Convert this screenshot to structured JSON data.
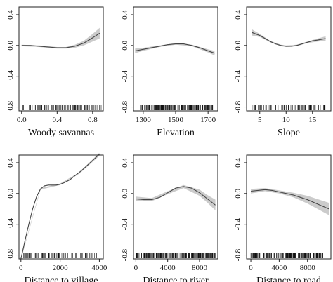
{
  "chart_data": [
    {
      "type": "line",
      "xlabel": "Woody savannas",
      "xlim": [
        -0.03,
        0.92
      ],
      "xticks": [
        0.0,
        0.4,
        0.8
      ],
      "xtick_labels": [
        "0.0",
        "0.4",
        "0.8"
      ],
      "ylim": [
        -0.85,
        0.5
      ],
      "yticks": [
        -0.8,
        -0.4,
        0.0,
        0.4
      ],
      "ytick_labels": [
        "-0.8",
        "-0.4",
        "0.0",
        "0.4"
      ],
      "series": [
        {
          "x": [
            0.0,
            0.1,
            0.2,
            0.3,
            0.4,
            0.5,
            0.6,
            0.7,
            0.8,
            0.88
          ],
          "y": [
            0.0,
            0.0,
            -0.01,
            -0.02,
            -0.03,
            -0.03,
            -0.01,
            0.03,
            0.1,
            0.16
          ]
        }
      ],
      "band": {
        "x": [
          0.0,
          0.2,
          0.4,
          0.5,
          0.6,
          0.7,
          0.8,
          0.88
        ],
        "lower": [
          -0.01,
          -0.02,
          -0.04,
          -0.04,
          -0.03,
          0.0,
          0.05,
          0.09
        ],
        "upper": [
          0.01,
          0.0,
          -0.02,
          -0.02,
          0.01,
          0.06,
          0.15,
          0.23
        ]
      },
      "rug_range": [
        0.0,
        0.9
      ],
      "rug_density": "dense"
    },
    {
      "type": "line",
      "xlabel": "Elevation",
      "xlim": [
        1240,
        1760
      ],
      "xticks": [
        1300,
        1500,
        1700
      ],
      "xtick_labels": [
        "1300",
        "1500",
        "1700"
      ],
      "ylim": [
        -0.85,
        0.5
      ],
      "yticks": [
        -0.8,
        -0.4,
        0.0,
        0.4
      ],
      "ytick_labels": [
        "-0.8",
        "-0.4",
        "0.0",
        "0.4"
      ],
      "series": [
        {
          "x": [
            1250,
            1300,
            1350,
            1400,
            1450,
            1500,
            1550,
            1600,
            1650,
            1700,
            1740
          ],
          "y": [
            -0.07,
            -0.05,
            -0.03,
            -0.01,
            0.01,
            0.02,
            0.02,
            0.0,
            -0.03,
            -0.07,
            -0.1
          ]
        }
      ],
      "band": {
        "x": [
          1250,
          1300,
          1400,
          1500,
          1600,
          1700,
          1740
        ],
        "lower": [
          -0.1,
          -0.07,
          -0.02,
          0.01,
          -0.01,
          -0.09,
          -0.13
        ],
        "upper": [
          -0.04,
          -0.03,
          0.0,
          0.03,
          0.01,
          -0.05,
          -0.07
        ]
      },
      "rug_range": [
        1280,
        1730
      ],
      "rug_density": "very dense"
    },
    {
      "type": "line",
      "xlabel": "Slope",
      "xlim": [
        2.5,
        18.5
      ],
      "xticks": [
        5,
        10,
        15
      ],
      "xtick_labels": [
        "5",
        "10",
        "15"
      ],
      "ylim": [
        -0.85,
        0.5
      ],
      "yticks": [
        -0.8,
        -0.4,
        0.0,
        0.4
      ],
      "ytick_labels": [
        "-0.8",
        "-0.4",
        "0.0",
        "0.4"
      ],
      "series": [
        {
          "x": [
            3.5,
            5,
            6,
            7,
            8,
            9,
            10,
            11,
            12,
            13,
            14,
            15,
            16,
            17.5
          ],
          "y": [
            0.17,
            0.13,
            0.09,
            0.05,
            0.02,
            0.0,
            -0.01,
            -0.01,
            0.0,
            0.02,
            0.04,
            0.06,
            0.07,
            0.09
          ]
        }
      ],
      "band": {
        "x": [
          3.5,
          5,
          7,
          9,
          10,
          12,
          14,
          16,
          17.5
        ],
        "lower": [
          0.13,
          0.11,
          0.04,
          -0.01,
          -0.02,
          -0.01,
          0.03,
          0.05,
          0.06
        ],
        "upper": [
          0.21,
          0.15,
          0.06,
          0.01,
          0.0,
          0.01,
          0.05,
          0.09,
          0.12
        ]
      },
      "rug_range": [
        3.5,
        17.5
      ],
      "rug_density": "dense"
    },
    {
      "type": "line",
      "xlabel": "Distance to village",
      "xlim": [
        -100,
        4200
      ],
      "xticks": [
        0,
        2000,
        4000
      ],
      "xtick_labels": [
        "0",
        "2000",
        "4000"
      ],
      "ylim": [
        -0.85,
        0.5
      ],
      "yticks": [
        -0.8,
        -0.4,
        0.0,
        0.4
      ],
      "ytick_labels": [
        "-0.8",
        "-0.4",
        "0.0",
        "0.4"
      ],
      "series": [
        {
          "x": [
            0,
            200,
            400,
            600,
            800,
            1000,
            1200,
            1400,
            1600,
            1800,
            2000,
            2200,
            2500,
            2800,
            3100,
            3400,
            3700,
            4000
          ],
          "y": [
            -0.85,
            -0.62,
            -0.4,
            -0.2,
            -0.04,
            0.06,
            0.1,
            0.11,
            0.11,
            0.11,
            0.12,
            0.14,
            0.18,
            0.24,
            0.3,
            0.37,
            0.44,
            0.51
          ]
        }
      ],
      "band": {
        "x": [
          0,
          1000,
          2000,
          3000,
          4000
        ],
        "lower": [
          -0.86,
          0.05,
          0.11,
          0.26,
          0.49
        ],
        "upper": [
          -0.84,
          0.07,
          0.13,
          0.28,
          0.53
        ]
      },
      "rug_range": [
        0,
        4000
      ],
      "rug_density": "dense"
    },
    {
      "type": "line",
      "xlabel": "Distance to river",
      "xlim": [
        -300,
        10300
      ],
      "xticks": [
        0,
        4000,
        8000
      ],
      "xtick_labels": [
        "0",
        "4000",
        "8000"
      ],
      "ylim": [
        -0.85,
        0.5
      ],
      "yticks": [
        -0.8,
        -0.4,
        0.0,
        0.4
      ],
      "ytick_labels": [
        "-0.8",
        "-0.4",
        "0.0",
        "0.4"
      ],
      "series": [
        {
          "x": [
            0,
            1000,
            2000,
            3000,
            4000,
            5000,
            6000,
            7000,
            8000,
            9000,
            10000
          ],
          "y": [
            -0.07,
            -0.08,
            -0.08,
            -0.05,
            0.01,
            0.07,
            0.09,
            0.07,
            0.01,
            -0.07,
            -0.15
          ]
        }
      ],
      "band": {
        "x": [
          0,
          2000,
          4000,
          6000,
          8000,
          9000,
          10000
        ],
        "lower": [
          -0.1,
          -0.1,
          -0.01,
          0.07,
          -0.03,
          -0.12,
          -0.22
        ],
        "upper": [
          -0.04,
          -0.06,
          0.03,
          0.11,
          0.05,
          -0.02,
          -0.08
        ]
      },
      "rug_range": [
        0,
        10000
      ],
      "rug_density": "very dense"
    },
    {
      "type": "line",
      "xlabel": "Distance to road",
      "xlim": [
        -600,
        11300
      ],
      "xticks": [
        0,
        4000,
        8000
      ],
      "xtick_labels": [
        "0",
        "4000",
        "8000"
      ],
      "ylim": [
        -0.85,
        0.5
      ],
      "yticks": [
        -0.8,
        -0.4,
        0.0,
        0.4
      ],
      "ytick_labels": [
        "-0.8",
        "-0.4",
        "0.0",
        "0.4"
      ],
      "series": [
        {
          "x": [
            0,
            1000,
            2000,
            3000,
            4000,
            5000,
            6000,
            7000,
            8000,
            9000,
            10000,
            11000
          ],
          "y": [
            0.03,
            0.04,
            0.05,
            0.04,
            0.02,
            0.0,
            -0.02,
            -0.05,
            -0.08,
            -0.12,
            -0.16,
            -0.2
          ]
        }
      ],
      "band": {
        "x": [
          0,
          2000,
          4000,
          6000,
          8000,
          10000,
          11000
        ],
        "lower": [
          0.0,
          0.03,
          0.0,
          -0.05,
          -0.13,
          -0.23,
          -0.28
        ],
        "upper": [
          0.06,
          0.07,
          0.04,
          0.01,
          -0.03,
          -0.09,
          -0.12
        ]
      },
      "rug_range": [
        0,
        10500
      ],
      "rug_density": "very dense"
    }
  ]
}
